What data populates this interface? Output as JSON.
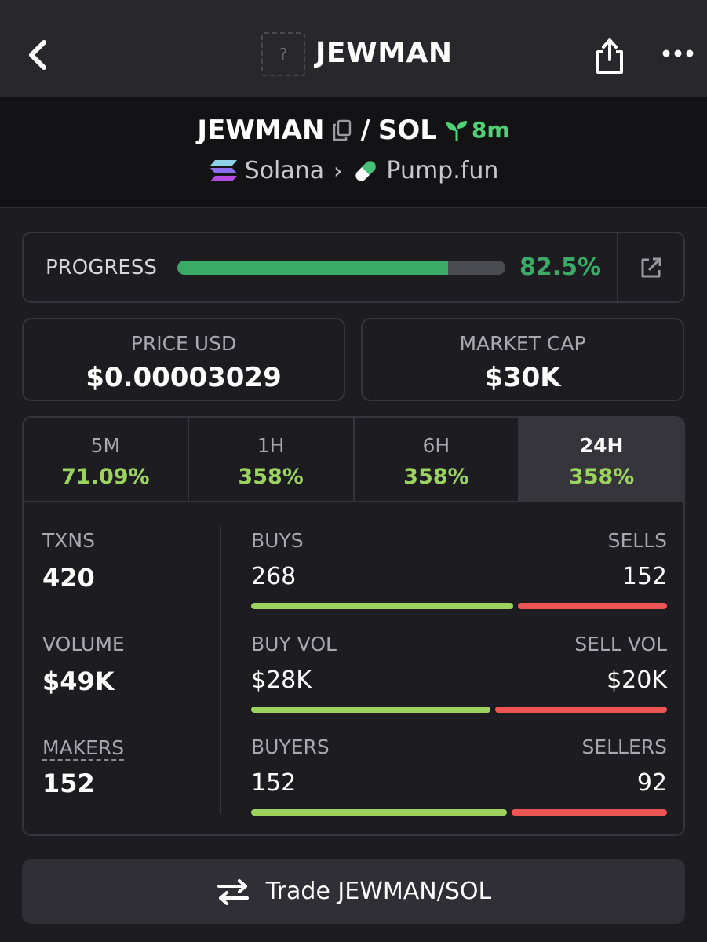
{
  "header": {
    "token_name": "JEWMAN",
    "logo_placeholder": "?",
    "icons": [
      "back-chevron-icon",
      "share-icon",
      "more-dots-icon"
    ]
  },
  "pair": {
    "base": "JEWMAN",
    "separator": "/",
    "quote": "SOL",
    "age": "8m",
    "chain": "Solana",
    "dex": "Pump.fun",
    "age_color": "#4fd176"
  },
  "progress": {
    "label": "PROGRESS",
    "value_text": "82.5%",
    "fraction": 0.825,
    "color": "#3aaa66"
  },
  "stats": {
    "price_label": "PRICE USD",
    "price_value": "$0.00003029",
    "mcap_label": "MARKET CAP",
    "mcap_value": "$30K"
  },
  "tabs": [
    {
      "label": "5M",
      "value": "71.09%"
    },
    {
      "label": "1H",
      "value": "358%"
    },
    {
      "label": "6H",
      "value": "358%"
    },
    {
      "label": "24H",
      "value": "358%",
      "active": true
    }
  ],
  "metrics": {
    "txns_label": "TXNS",
    "txns_value": "420",
    "volume_label": "VOLUME",
    "volume_value": "$49K",
    "makers_label": "MAKERS",
    "makers_value": "152"
  },
  "splits": {
    "buys_label": "BUYS",
    "sells_label": "SELLS",
    "buys": "268",
    "sells": "152",
    "buys_share": 0.638,
    "buy_vol_label": "BUY VOL",
    "sell_vol_label": "SELL VOL",
    "buy_vol": "$28K",
    "sell_vol": "$20K",
    "buy_vol_share": 0.583,
    "buyers_label": "BUYERS",
    "sellers_label": "SELLERS",
    "buyers": "152",
    "sellers": "92",
    "buyers_share": 0.623
  },
  "colors": {
    "positive": "#9cd35f",
    "negative": "#ee5655",
    "background": "#1c1c21"
  },
  "trade": {
    "label": "Trade JEWMAN/SOL"
  }
}
